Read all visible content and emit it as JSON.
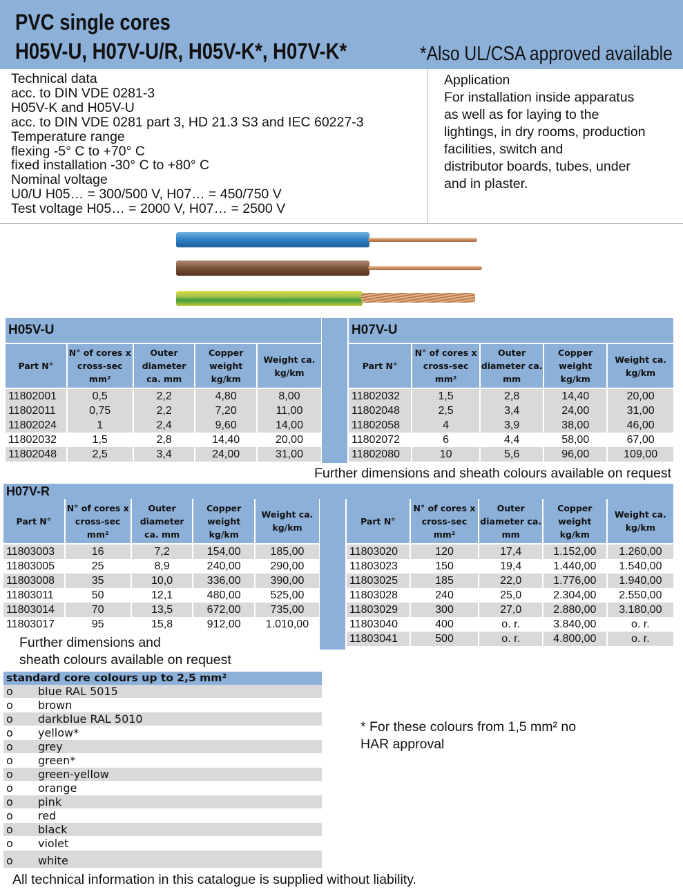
{
  "header": {
    "title_line1": "PVC single cores",
    "title_line2": "H05V-U, H07V-U/R, H05V-K*, H07V-K*",
    "approval": "*Also UL/CSA approved available"
  },
  "technical": [
    "Technical data",
    "acc. to DIN VDE 0281-3",
    "H05V-K and H05V-U",
    "acc. to DIN VDE 0281 part 3, HD 21.3 S3 and IEC 60227-3",
    "Temperature range",
    "flexing -5° C to +70° C",
    "fixed installation -30° C to +80° C",
    "Nominal voltage",
    "U0/U H05… = 300/500 V, H07… = 450/750 V",
    "Test voltage H05… = 2000 V, H07… = 2500 V"
  ],
  "application": [
    "Application",
    "For installation inside apparatus",
    "as well as for laying to the",
    "lightings, in dry rooms, production",
    "facilities, switch and",
    "distributor boards, tubes, under",
    "and in plaster."
  ],
  "columns": [
    "Part N°",
    "N° of cores x cross-sec mm²",
    "Outer diameter ca. mm",
    "Copper weight kg/km",
    "Weight ca. kg/km"
  ],
  "tables": {
    "h05vu": {
      "title": "H05V-U",
      "rows": [
        [
          "11802001",
          "0,5",
          "2,2",
          "4,80",
          "8,00"
        ],
        [
          "11802011",
          "0,75",
          "2,2",
          "7,20",
          "11,00"
        ],
        [
          "11802024",
          "1",
          "2,4",
          "9,60",
          "14,00"
        ],
        [
          "11802032",
          "1,5",
          "2,8",
          "14,40",
          "20,00"
        ],
        [
          "11802048",
          "2,5",
          "3,4",
          "24,00",
          "31,00"
        ]
      ],
      "shade": [
        1,
        1,
        1,
        0,
        1
      ]
    },
    "h07vu": {
      "title": "H07V-U",
      "rows": [
        [
          "11802032",
          "1,5",
          "2,8",
          "14,40",
          "20,00"
        ],
        [
          "11802048",
          "2,5",
          "3,4",
          "24,00",
          "31,00"
        ],
        [
          "11802058",
          "4",
          "3,9",
          "38,00",
          "46,00"
        ],
        [
          "11802072",
          "6",
          "4,4",
          "58,00",
          "67,00"
        ],
        [
          "11802080",
          "10",
          "5,6",
          "96,00",
          "109,00"
        ]
      ],
      "shade": [
        1,
        1,
        1,
        0,
        1
      ]
    },
    "h07vr": {
      "title": "H07V-R",
      "rows": [
        [
          "11803003",
          "16",
          "7,2",
          "154,00",
          "185,00"
        ],
        [
          "11803005",
          "25",
          "8,9",
          "240,00",
          "290,00"
        ],
        [
          "11803008",
          "35",
          "10,0",
          "336,00",
          "390,00"
        ],
        [
          "11803011",
          "50",
          "12,1",
          "480,00",
          "525,00"
        ],
        [
          "11803014",
          "70",
          "13,5",
          "672,00",
          "735,00"
        ],
        [
          "11803017",
          "95",
          "15,8",
          "912,00",
          "1.010,00"
        ]
      ],
      "shade": [
        1,
        0,
        1,
        0,
        1,
        0
      ]
    },
    "h07vr2": {
      "title": "",
      "rows": [
        [
          "11803020",
          "120",
          "17,4",
          "1.152,00",
          "1.260,00"
        ],
        [
          "11803023",
          "150",
          "19,4",
          "1.440,00",
          "1.540,00"
        ],
        [
          "11803025",
          "185",
          "22,0",
          "1.776,00",
          "1.940,00"
        ],
        [
          "11803028",
          "240",
          "25,0",
          "2.304,00",
          "2.550,00"
        ],
        [
          "11803029",
          "300",
          "27,0",
          "2.880,00",
          "3.180,00"
        ],
        [
          "11803040",
          "400",
          "o. r.",
          "3.840,00",
          "o. r."
        ],
        [
          "11803041",
          "500",
          "o. r.",
          "4.800,00",
          "o. r."
        ]
      ],
      "shade": [
        1,
        0,
        1,
        0,
        1,
        0,
        1
      ]
    }
  },
  "notes": {
    "further_right": "Further dimensions and sheath colours available on request",
    "further_left_1": "Further dimensions and",
    "further_left_2": "sheath colours available on request",
    "har": [
      "* For these colours from 1,5 mm² no",
      "HAR approval"
    ],
    "footer": "All technical information in this catalogue is supplied without liability."
  },
  "colours": {
    "title": "standard core colours up to 2,5 mm²",
    "bullet": "o",
    "items": [
      "blue RAL 5015",
      "brown",
      "darkblue RAL 5010",
      "yellow*",
      "grey",
      "green*",
      "green-yellow",
      "orange",
      "pink",
      "red",
      "black",
      "violet",
      "white"
    ]
  },
  "palette": {
    "accent": "#8db0d9",
    "shade": "#d9d9d9"
  }
}
